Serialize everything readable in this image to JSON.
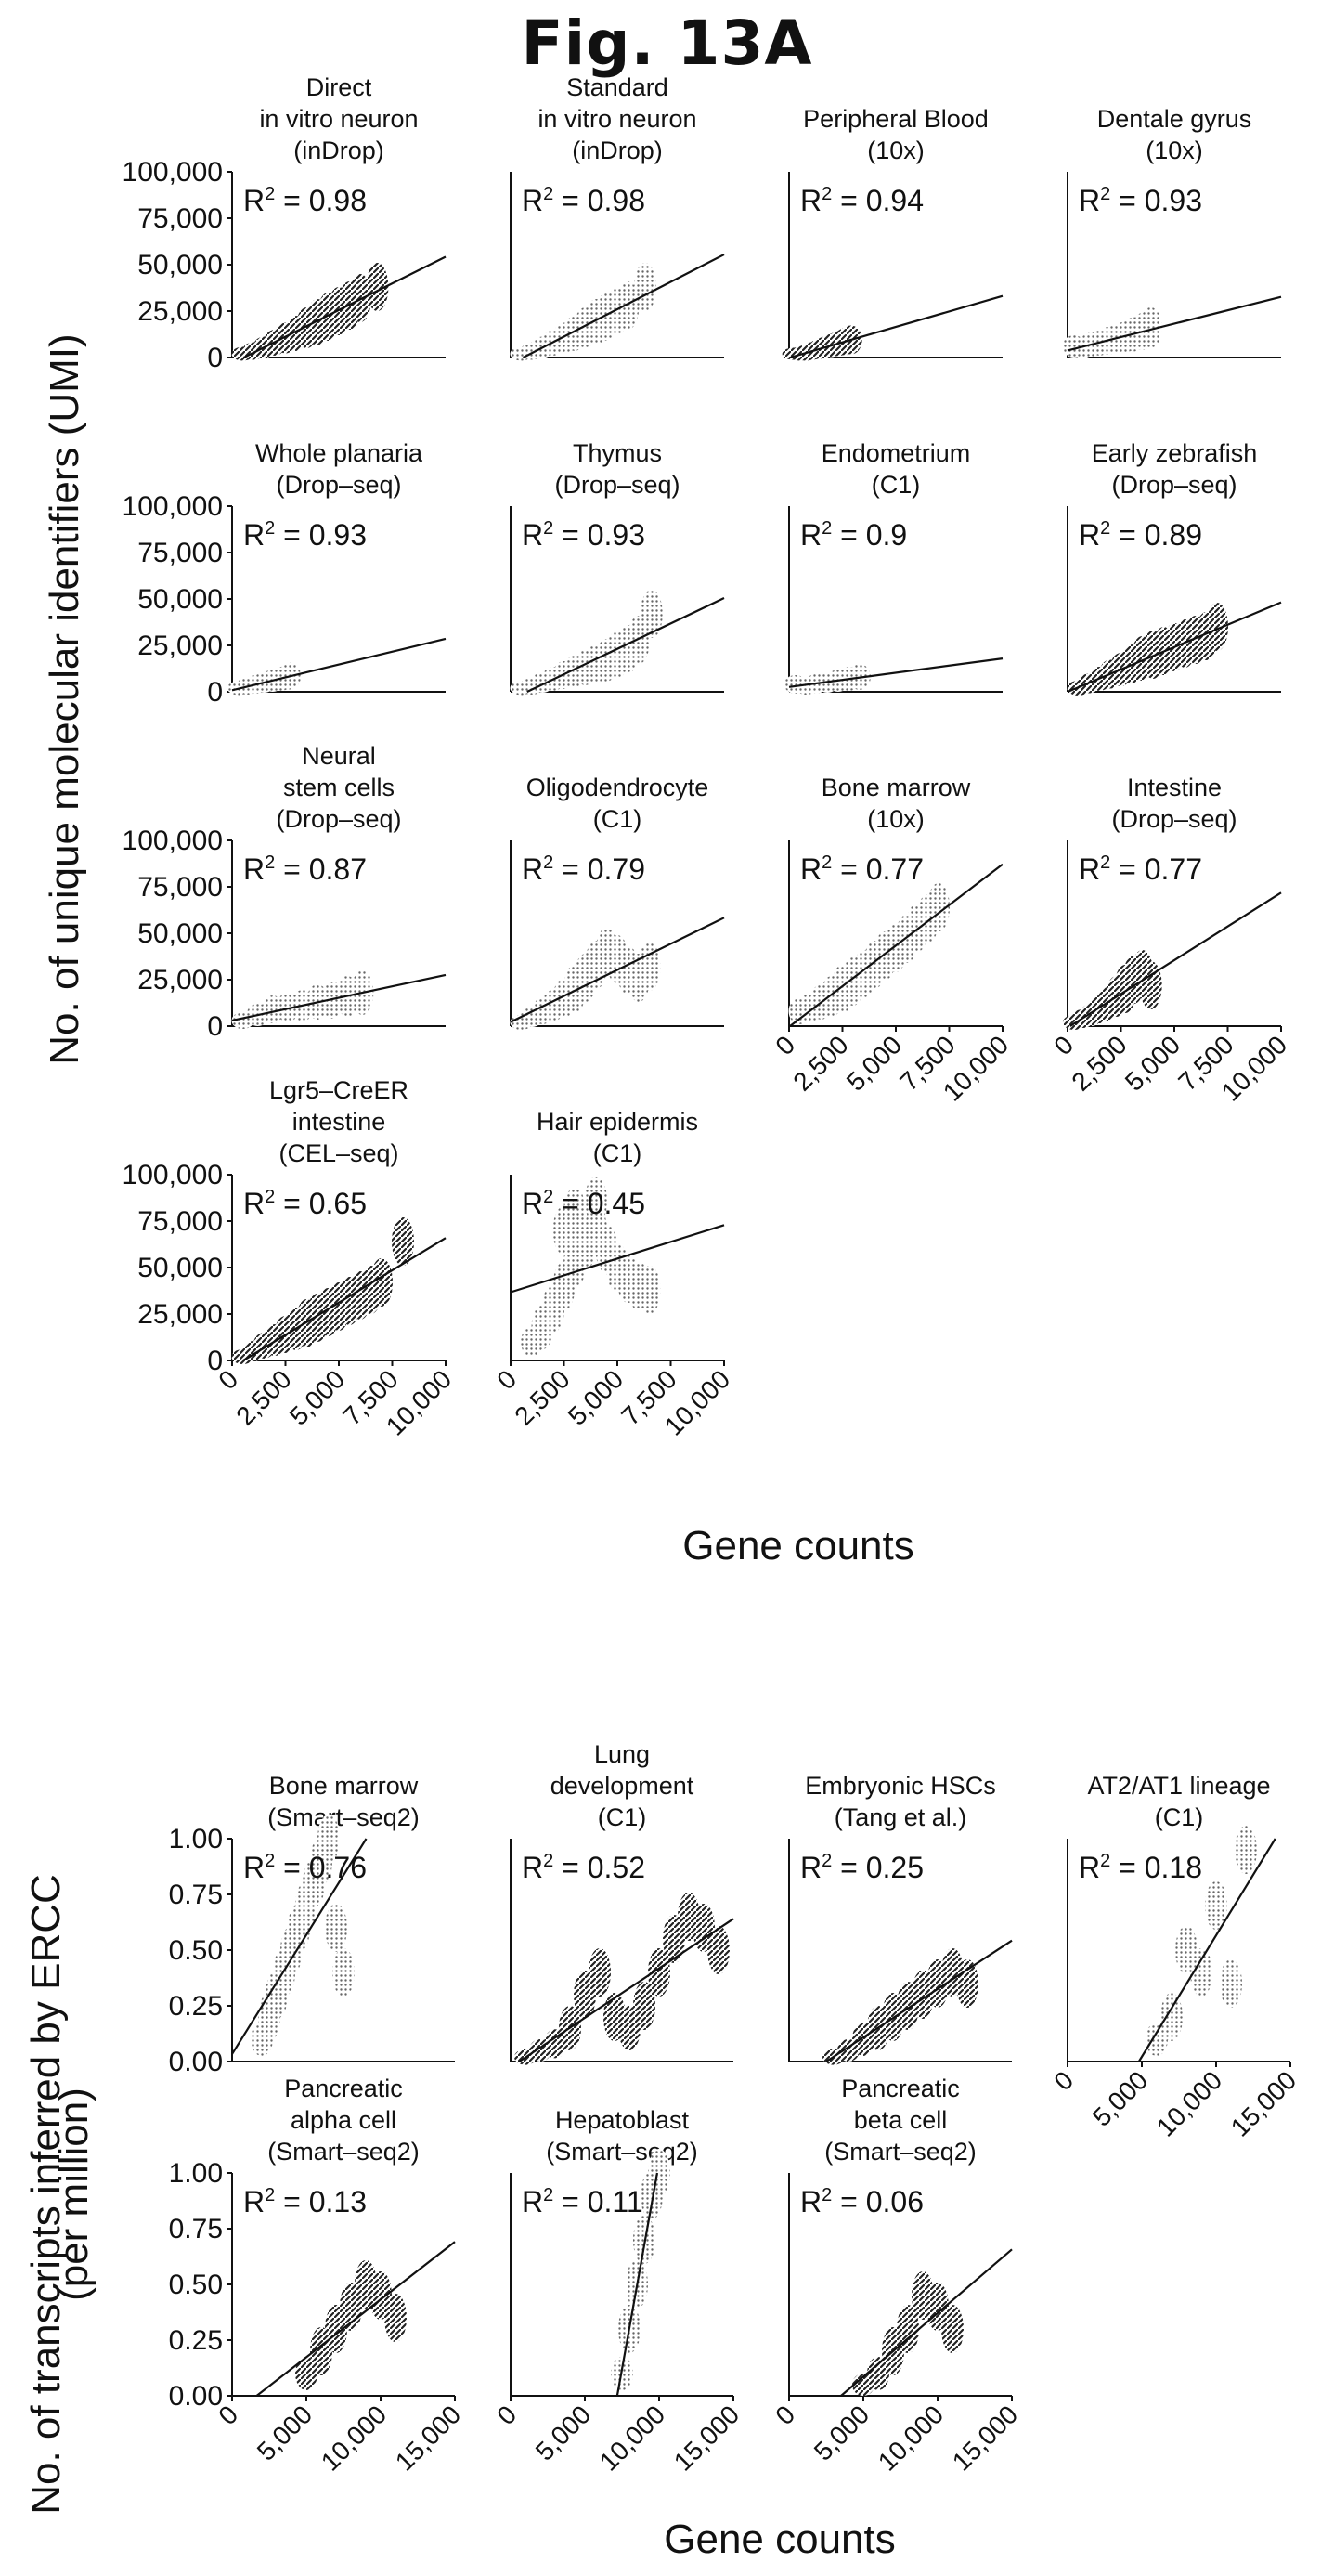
{
  "figure": {
    "title": "Fig. 13A",
    "section_a": {
      "ylabel": "No. of unique molecular identifiers (UMI)",
      "xlabel": "Gene counts"
    },
    "section_b": {
      "ylabel_line1": "No. of transcripts inferred by ERCC",
      "ylabel_line2": "(per million)",
      "xlabel": "Gene counts"
    }
  },
  "chart_data": [
    {
      "id": "a1",
      "type": "scatter",
      "title_lines": [
        "Direct",
        "in vitro neuron",
        "(inDrop)"
      ],
      "r2": "0.98",
      "xlim": [
        0,
        10000
      ],
      "ylim": [
        0,
        100000
      ],
      "fill": "dark",
      "x": [
        500,
        1000,
        1500,
        2000,
        2500,
        3000,
        3500,
        4000,
        4500,
        5000,
        5500,
        6000,
        6800
      ],
      "y": [
        1500,
        3500,
        5500,
        8000,
        10500,
        13000,
        16000,
        19000,
        22000,
        25000,
        28000,
        32000,
        38000
      ],
      "yticks": [
        "0",
        "25,000",
        "50,000",
        "75,000",
        "100,000"
      ],
      "xticks": []
    },
    {
      "id": "a2",
      "type": "scatter",
      "title_lines": [
        "Standard",
        "in vitro neuron",
        "(inDrop)"
      ],
      "r2": "0.98",
      "xlim": [
        0,
        10000
      ],
      "ylim": [
        0,
        100000
      ],
      "fill": "light",
      "x": [
        500,
        1000,
        1500,
        2000,
        2500,
        3000,
        3500,
        4000,
        4500,
        5000,
        5500,
        6300
      ],
      "y": [
        1500,
        3500,
        5500,
        8000,
        10500,
        13000,
        16000,
        19000,
        22000,
        25000,
        28000,
        38000
      ],
      "yticks": [],
      "xticks": []
    },
    {
      "id": "a3",
      "type": "scatter",
      "title_lines": [
        "Peripheral Blood",
        "(10x)"
      ],
      "r2": "0.94",
      "xlim": [
        0,
        10000
      ],
      "ylim": [
        0,
        100000
      ],
      "fill": "dark",
      "x": [
        200,
        500,
        800,
        1100,
        1400,
        1700,
        2000,
        2300,
        2600,
        2900
      ],
      "y": [
        500,
        1500,
        2500,
        3500,
        4500,
        5500,
        6500,
        7500,
        8500,
        9500
      ],
      "yticks": [],
      "xticks": []
    },
    {
      "id": "a4",
      "type": "scatter",
      "title_lines": [
        "Dentale gyrus",
        "(10x)"
      ],
      "r2": "0.93",
      "xlim": [
        0,
        10000
      ],
      "ylim": [
        0,
        100000
      ],
      "fill": "light",
      "x": [
        300,
        700,
        1100,
        1500,
        1900,
        2300,
        2700,
        3100,
        3500,
        3900
      ],
      "y": [
        6000,
        5000,
        7000,
        8000,
        9000,
        10000,
        11000,
        12500,
        14000,
        16000
      ],
      "yticks": [],
      "xticks": []
    },
    {
      "id": "b1",
      "type": "scatter",
      "title_lines": [
        "Whole planaria",
        "(Drop–seq)"
      ],
      "r2": "0.93",
      "xlim": [
        0,
        10000
      ],
      "ylim": [
        0,
        100000
      ],
      "fill": "light",
      "x": [
        300,
        700,
        1100,
        1500,
        1900,
        2300,
        2700
      ],
      "y": [
        1500,
        3000,
        4000,
        5000,
        6000,
        7000,
        8500
      ],
      "yticks": [
        "0",
        "25,000",
        "50,000",
        "75,000",
        "100,000"
      ],
      "xticks": []
    },
    {
      "id": "b2",
      "type": "scatter",
      "title_lines": [
        "Thymus",
        "(Drop–seq)"
      ],
      "r2": "0.93",
      "xlim": [
        0,
        10000
      ],
      "ylim": [
        0,
        100000
      ],
      "fill": "light",
      "x": [
        500,
        1000,
        1500,
        2000,
        2500,
        3000,
        3500,
        4000,
        4500,
        5000,
        5500,
        6000,
        6600
      ],
      "y": [
        1500,
        3000,
        5000,
        7000,
        9000,
        11000,
        13000,
        15000,
        17000,
        20000,
        23000,
        28000,
        42000
      ],
      "yticks": [],
      "xticks": []
    },
    {
      "id": "b3",
      "type": "scatter",
      "title_lines": [
        "Endometrium",
        "(C1)"
      ],
      "r2": "0.9",
      "xlim": [
        0,
        10000
      ],
      "ylim": [
        0,
        100000
      ],
      "fill": "light",
      "x": [
        300,
        800,
        1300,
        1800,
        2300,
        2800,
        3300
      ],
      "y": [
        4000,
        3000,
        4500,
        5000,
        6000,
        7000,
        8000
      ],
      "yticks": [],
      "xticks": []
    },
    {
      "id": "b4",
      "type": "scatter",
      "title_lines": [
        "Early zebrafish",
        "(Drop–seq)"
      ],
      "r2": "0.89",
      "xlim": [
        0,
        10000
      ],
      "ylim": [
        0,
        100000
      ],
      "fill": "dark",
      "x": [
        500,
        1000,
        1500,
        2000,
        2500,
        3000,
        3500,
        4000,
        4500,
        5000,
        5500,
        6000,
        6500,
        7000
      ],
      "y": [
        2000,
        4500,
        7000,
        9500,
        12000,
        15000,
        18000,
        20000,
        22000,
        24000,
        26000,
        28000,
        30000,
        35000
      ],
      "yticks": [],
      "xticks": []
    },
    {
      "id": "c1",
      "type": "scatter",
      "title_lines": [
        "Neural",
        "stem cells",
        "(Drop–seq)"
      ],
      "r2": "0.87",
      "xlim": [
        0,
        10000
      ],
      "ylim": [
        0,
        100000
      ],
      "fill": "light",
      "x": [
        500,
        1200,
        1900,
        2600,
        3300,
        4000,
        4700,
        5400,
        6100
      ],
      "y": [
        3000,
        6000,
        9000,
        10000,
        11000,
        13000,
        14000,
        16000,
        18000
      ],
      "yticks": [
        "0",
        "25,000",
        "50,000",
        "75,000",
        "100,000"
      ],
      "xticks": []
    },
    {
      "id": "c2",
      "type": "scatter",
      "title_lines": [
        "Oligodendrocyte",
        "(C1)"
      ],
      "r2": "0.79",
      "xlim": [
        0,
        10000
      ],
      "ylim": [
        0,
        100000
      ],
      "fill": "light",
      "x": [
        500,
        1000,
        1500,
        2000,
        2500,
        3000,
        3500,
        4000,
        4500,
        5000,
        5500,
        6000,
        6500
      ],
      "y": [
        2000,
        5000,
        8000,
        11000,
        15000,
        20000,
        26000,
        33000,
        40000,
        36000,
        30000,
        26000,
        32000
      ],
      "yticks": [],
      "xticks": []
    },
    {
      "id": "c3",
      "type": "scatter",
      "title_lines": [
        "Bone marrow",
        "(10x)"
      ],
      "r2": "0.77",
      "xlim": [
        0,
        10000
      ],
      "ylim": [
        0,
        100000
      ],
      "fill": "light",
      "x": [
        500,
        1000,
        1500,
        2000,
        2500,
        3000,
        3500,
        4000,
        4500,
        5000,
        5500,
        6000,
        6500,
        7000
      ],
      "y": [
        8000,
        10000,
        13000,
        16000,
        20000,
        24000,
        28000,
        33000,
        38000,
        42000,
        47000,
        53000,
        58000,
        64000
      ],
      "yticks": [],
      "xticks": [
        "0",
        "2,500",
        "5,000",
        "7,500",
        "10,000"
      ]
    },
    {
      "id": "c4",
      "type": "scatter",
      "title_lines": [
        "Intestine",
        "(Drop–seq)"
      ],
      "r2": "0.77",
      "xlim": [
        0,
        10000
      ],
      "ylim": [
        0,
        100000
      ],
      "fill": "dark",
      "x": [
        300,
        700,
        1100,
        1500,
        1900,
        2300,
        2700,
        3100,
        3500,
        3900
      ],
      "y": [
        2000,
        4000,
        6000,
        9000,
        12000,
        16000,
        20000,
        25000,
        28000,
        22000
      ],
      "yticks": [],
      "xticks": [
        "0",
        "2,500",
        "5,000",
        "7,500",
        "10,000"
      ]
    },
    {
      "id": "d1",
      "type": "scatter",
      "title_lines": [
        "Lgr5–CreER",
        "intestine",
        "(CEL–seq)"
      ],
      "r2": "0.65",
      "xlim": [
        0,
        10000
      ],
      "ylim": [
        0,
        100000
      ],
      "fill": "dark",
      "x": [
        500,
        1000,
        1500,
        2000,
        2500,
        3000,
        3500,
        4000,
        4500,
        5000,
        5500,
        6000,
        6500,
        7000,
        8000
      ],
      "y": [
        2000,
        5000,
        8000,
        11000,
        14000,
        17000,
        20000,
        23000,
        26000,
        29000,
        32000,
        35000,
        38000,
        42000,
        64000
      ],
      "yticks": [
        "0",
        "25,000",
        "50,000",
        "75,000",
        "100,000"
      ],
      "xticks": [
        "0",
        "2,500",
        "5,000",
        "7,500",
        "10,000"
      ]
    },
    {
      "id": "d2",
      "type": "scatter",
      "title_lines": [
        "Hair epidermis",
        "(C1)"
      ],
      "r2": "0.45",
      "xlim": [
        0,
        10000
      ],
      "ylim": [
        0,
        100000
      ],
      "fill": "light",
      "x": [
        1000,
        1500,
        2000,
        2500,
        3000,
        3500,
        4000,
        4500,
        5000,
        5500,
        6000,
        6500,
        4000,
        3000,
        2500
      ],
      "y": [
        10000,
        18000,
        28000,
        40000,
        52000,
        62000,
        70000,
        60000,
        50000,
        44000,
        40000,
        38000,
        86000,
        80000,
        70000
      ],
      "yticks": [],
      "xticks": [
        "0",
        "2,500",
        "5,000",
        "7,500",
        "10,000"
      ]
    },
    {
      "id": "e1",
      "type": "scatter",
      "title_lines": [
        "Bone marrow",
        "(Smart–seq2)"
      ],
      "r2": "0.76",
      "xlim": [
        0,
        15000
      ],
      "ylim": [
        0,
        1
      ],
      "fill": "light",
      "x": [
        2000,
        2500,
        3000,
        3500,
        4000,
        4500,
        5000,
        5500,
        6000,
        6500,
        7000,
        7500
      ],
      "y": [
        0.1,
        0.2,
        0.3,
        0.4,
        0.5,
        0.6,
        0.7,
        0.8,
        0.9,
        1.0,
        0.6,
        0.4
      ],
      "yticks": [
        "0.00",
        "0.25",
        "0.50",
        "0.75",
        "1.00"
      ],
      "xticks": []
    },
    {
      "id": "e2",
      "type": "scatter",
      "title_lines": [
        "Lung",
        "development",
        "(C1)"
      ],
      "r2": "0.52",
      "xlim": [
        0,
        15000
      ],
      "ylim": [
        0,
        1
      ],
      "fill": "dark",
      "x": [
        1000,
        2000,
        3000,
        4000,
        5000,
        6000,
        7000,
        8000,
        9000,
        10000,
        11000,
        12000,
        13000,
        14000
      ],
      "y": [
        0.02,
        0.05,
        0.08,
        0.15,
        0.3,
        0.4,
        0.2,
        0.15,
        0.25,
        0.4,
        0.55,
        0.65,
        0.6,
        0.5
      ],
      "yticks": [],
      "xticks": []
    },
    {
      "id": "e3",
      "type": "scatter",
      "title_lines": [
        "Embryonic HSCs",
        "(Tang et al.)"
      ],
      "r2": "0.25",
      "xlim": [
        0,
        15000
      ],
      "ylim": [
        0,
        1
      ],
      "fill": "dark",
      "x": [
        3000,
        4000,
        5000,
        6000,
        7000,
        8000,
        9000,
        10000,
        11000,
        12000
      ],
      "y": [
        0.02,
        0.05,
        0.1,
        0.15,
        0.2,
        0.25,
        0.3,
        0.35,
        0.4,
        0.35
      ],
      "yticks": [],
      "xticks": []
    },
    {
      "id": "e4",
      "type": "scatter",
      "title_lines": [
        "AT2/AT1 lineage",
        "(C1)"
      ],
      "r2": "0.18",
      "xlim": [
        0,
        15000
      ],
      "ylim": [
        0,
        1
      ],
      "fill": "light",
      "x": [
        6000,
        7000,
        8000,
        9000,
        10000,
        11000,
        12000
      ],
      "y": [
        0.1,
        0.2,
        0.5,
        0.4,
        0.7,
        0.35,
        0.95
      ],
      "yticks": [],
      "xticks": [
        "0",
        "5,000",
        "10,000",
        "15,000"
      ]
    },
    {
      "id": "f1",
      "type": "scatter",
      "title_lines": [
        "Pancreatic",
        "alpha cell",
        "(Smart–seq2)"
      ],
      "r2": "0.13",
      "xlim": [
        0,
        15000
      ],
      "ylim": [
        0,
        1
      ],
      "fill": "dark",
      "x": [
        5000,
        6000,
        7000,
        8000,
        9000,
        10000,
        11000
      ],
      "y": [
        0.1,
        0.2,
        0.3,
        0.4,
        0.5,
        0.45,
        0.35
      ],
      "yticks": [
        "0.00",
        "0.25",
        "0.50",
        "0.75",
        "1.00"
      ],
      "xticks": [
        "0",
        "5,000",
        "10,000",
        "15,000"
      ]
    },
    {
      "id": "f2",
      "type": "scatter",
      "title_lines": [
        "Hepatoblast",
        "(Smart–seq2)"
      ],
      "r2": "0.11",
      "xlim": [
        0,
        15000
      ],
      "ylim": [
        0,
        1
      ],
      "fill": "light",
      "x": [
        7500,
        8000,
        8500,
        9000,
        9500,
        10000
      ],
      "y": [
        0.1,
        0.3,
        0.5,
        0.7,
        0.9,
        1.0
      ],
      "yticks": [],
      "xticks": [
        "0",
        "5,000",
        "10,000",
        "15,000"
      ]
    },
    {
      "id": "f3",
      "type": "scatter",
      "title_lines": [
        "Pancreatic",
        "beta cell",
        "(Smart–seq2)"
      ],
      "r2": "0.06",
      "xlim": [
        0,
        15000
      ],
      "ylim": [
        0,
        1
      ],
      "fill": "dark",
      "x": [
        5000,
        6000,
        7000,
        8000,
        9000,
        10000,
        11000
      ],
      "y": [
        0.05,
        0.1,
        0.2,
        0.3,
        0.45,
        0.4,
        0.3
      ],
      "yticks": [],
      "xticks": [
        "0",
        "5,000",
        "10,000",
        "15,000"
      ]
    }
  ]
}
